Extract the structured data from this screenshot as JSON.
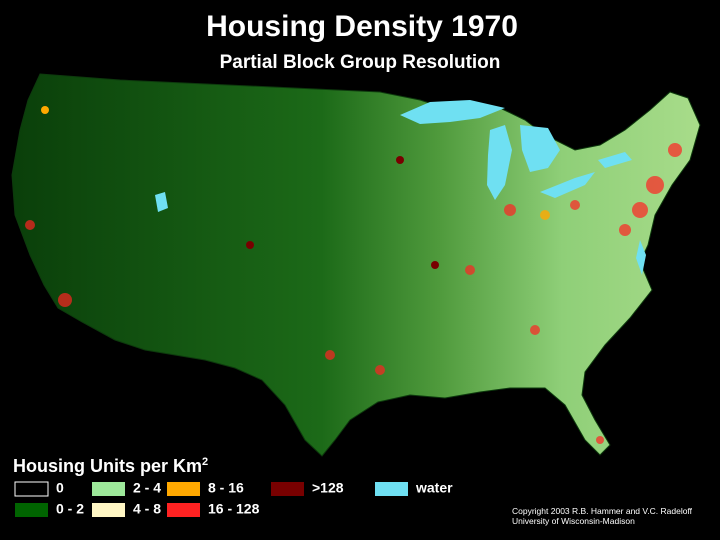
{
  "header": {
    "title": "Housing Density 1970",
    "subtitle": "Partial Block Group Resolution"
  },
  "legend": {
    "title": "Housing Units per Km",
    "title_superscript": "2",
    "items": [
      {
        "label": "0",
        "color": "#000000"
      },
      {
        "label": "0 - 2",
        "color": "#006400"
      },
      {
        "label": "2 - 4",
        "color": "#9de89a"
      },
      {
        "label": "4 - 8",
        "color": "#fff6c4"
      },
      {
        "label": "8 - 16",
        "color": "#ffa800"
      },
      {
        "label": "16 - 128",
        "color": "#ff2222"
      },
      {
        "label": ">128",
        "color": "#780000"
      },
      {
        "label": "water",
        "color": "#6fe0f2"
      }
    ]
  },
  "credits": [
    "Copyright 2003 R.B. Hammer and V.C. Radeloff",
    "University of Wisconsin-Madison"
  ]
}
